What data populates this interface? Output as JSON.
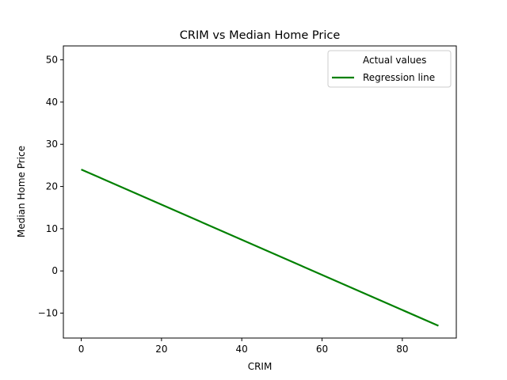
{
  "chart_data": {
    "type": "scatter",
    "title": "CRIM vs Median Home Price",
    "xlabel": "CRIM",
    "ylabel": "Median Home Price",
    "xlim": [
      -4.45,
      93.45
    ],
    "ylim": [
      -15.9,
      53.3
    ],
    "xticks": [
      0,
      20,
      40,
      60,
      80
    ],
    "yticks": [
      -10,
      0,
      10,
      20,
      30,
      40,
      50
    ],
    "grid": false,
    "legend_position": "top-right",
    "series": [
      {
        "name": "Actual values",
        "kind": "scatter",
        "color": "#ffffff",
        "points": []
      },
      {
        "name": "Regression line",
        "kind": "line",
        "color": "#008000",
        "x": [
          0,
          89
        ],
        "y": [
          24.03,
          -13.0
        ]
      }
    ]
  }
}
